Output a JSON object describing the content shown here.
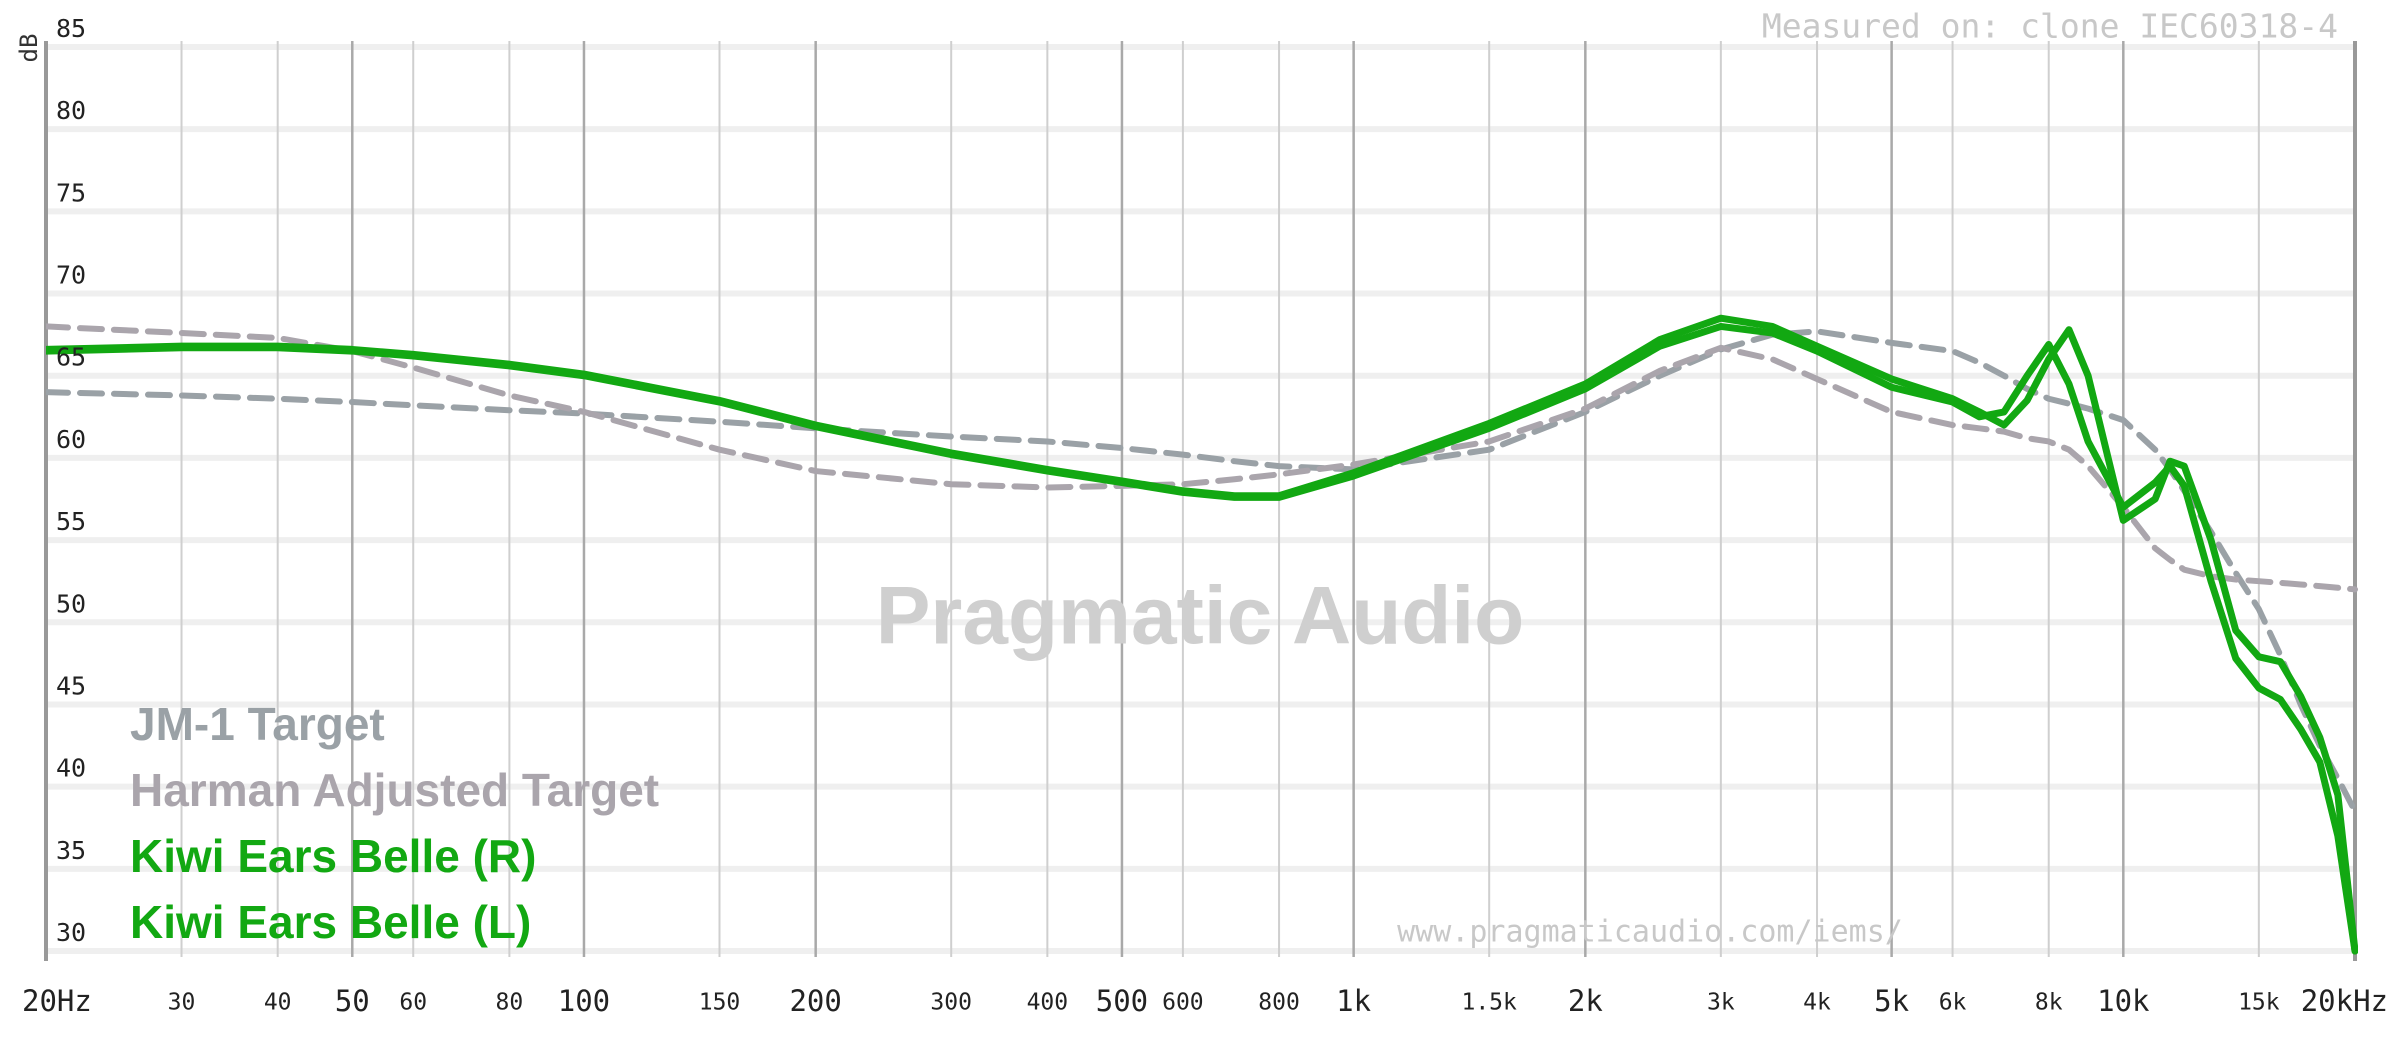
{
  "chart_data": {
    "type": "line",
    "title": "Measured on: clone IEC60318-4",
    "y_label": "dB",
    "watermark": "Pragmatic Audio",
    "footer": "www.pragmaticaudio.com/iems/",
    "x_scale": "log",
    "grid": true,
    "legend": "lower left",
    "xlim": [
      20,
      20000
    ],
    "ylim": [
      30,
      85
    ],
    "yticks": [
      30,
      35,
      40,
      45,
      50,
      55,
      60,
      65,
      70,
      75,
      80,
      85
    ],
    "xticks": [
      {
        "value": 20,
        "label": "20Hz"
      },
      30,
      40,
      50,
      60,
      80,
      100,
      150,
      200,
      300,
      400,
      500,
      600,
      800,
      {
        "value": 1000,
        "label": "1k"
      },
      {
        "value": 1500,
        "label": "1.5k"
      },
      {
        "value": 2000,
        "label": "2k"
      },
      {
        "value": 3000,
        "label": "3k"
      },
      {
        "value": 4000,
        "label": "4k"
      },
      {
        "value": 5000,
        "label": "5k"
      },
      {
        "value": 6000,
        "label": "6k"
      },
      {
        "value": 8000,
        "label": "8k"
      },
      {
        "value": 10000,
        "label": "10k"
      },
      {
        "value": 15000,
        "label": "15k"
      },
      {
        "value": 20000,
        "label": "20kHz"
      }
    ],
    "x": [
      20,
      30,
      40,
      50,
      60,
      80,
      100,
      150,
      200,
      300,
      400,
      500,
      600,
      700,
      800,
      1000,
      1500,
      2000,
      2500,
      3000,
      3500,
      4000,
      5000,
      6000,
      6500,
      7000,
      7500,
      8000,
      8500,
      9000,
      10000,
      11000,
      11500,
      12000,
      13000,
      14000,
      15000,
      16000,
      17000,
      18000,
      19000,
      20000
    ],
    "series": [
      {
        "name": "JM-1 Target",
        "color": "#9aa1a6",
        "dashed": true,
        "values": [
          64,
          63.8,
          63.6,
          63.4,
          63.2,
          62.9,
          62.7,
          62.2,
          61.8,
          61.3,
          61,
          60.6,
          60.2,
          59.8,
          59.5,
          59.3,
          60.5,
          62.8,
          65,
          66.6,
          67.5,
          67.7,
          67,
          66.5,
          65.8,
          65,
          64.2,
          63.6,
          63.3,
          63,
          62.3,
          60.5,
          59.3,
          58,
          55.5,
          53,
          50.8,
          48,
          45,
          42.5,
          40.5,
          38.5
        ]
      },
      {
        "name": "Harman Adjusted Target",
        "color": "#aaa5ac",
        "dashed": true,
        "values": [
          68,
          67.6,
          67.3,
          66.5,
          65.5,
          63.8,
          62.8,
          60.5,
          59.2,
          58.4,
          58.2,
          58.3,
          58.4,
          58.7,
          59,
          59.6,
          61,
          63,
          65.3,
          66.7,
          66,
          64.8,
          62.8,
          62,
          61.8,
          61.6,
          61.2,
          61,
          60.5,
          59.5,
          57,
          54.5,
          53.8,
          53.2,
          52.8,
          52.6,
          52.5,
          52.4,
          52.3,
          52.2,
          52.1,
          52
        ]
      },
      {
        "name": "Kiwi Ears Belle (R)",
        "color": "#12a812",
        "dashed": false,
        "values": [
          66.5,
          66.7,
          66.7,
          66.5,
          66.2,
          65.6,
          65,
          63.4,
          61.9,
          60.2,
          59.2,
          58.5,
          57.9,
          57.6,
          57.6,
          58.9,
          61.8,
          64.2,
          66.8,
          68,
          67.6,
          66.5,
          64.3,
          63.4,
          62.5,
          62.8,
          65,
          66.9,
          64.5,
          61,
          57,
          58.5,
          59.5,
          58.3,
          52.5,
          47.8,
          46,
          45.3,
          43.5,
          41.5,
          37,
          30
        ]
      },
      {
        "name": "Kiwi Ears Belle (L)",
        "color": "#12a812",
        "dashed": false,
        "values": [
          66.6,
          66.8,
          66.8,
          66.6,
          66.3,
          65.7,
          65.1,
          63.5,
          62,
          60.3,
          59.3,
          58.6,
          58,
          57.7,
          57.7,
          59.1,
          62.1,
          64.5,
          67.2,
          68.5,
          68,
          66.8,
          64.8,
          63.6,
          62.8,
          62,
          63.5,
          66,
          67.8,
          65,
          56.2,
          57.5,
          59.8,
          59.5,
          55,
          49.5,
          47.9,
          47.6,
          45.5,
          43,
          39.5,
          30
        ]
      }
    ]
  }
}
